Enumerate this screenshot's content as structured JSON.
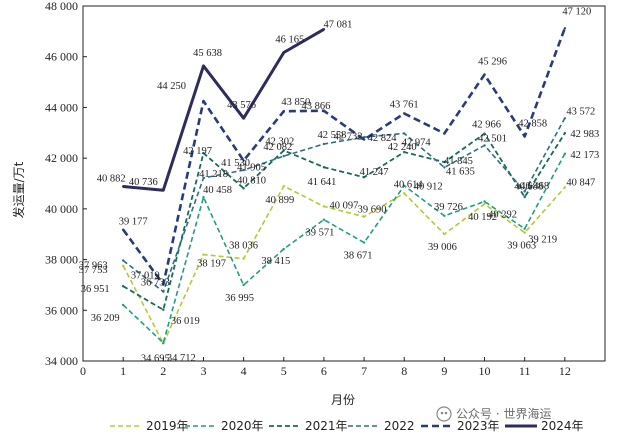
{
  "chart_data": {
    "type": "line",
    "xlabel": "月份",
    "ylabel": "发运量/万t",
    "xlim": [
      0,
      13
    ],
    "ylim": [
      34000,
      48000
    ],
    "x_ticks": [
      "0",
      "1",
      "2",
      "3",
      "4",
      "5",
      "6",
      "7",
      "8",
      "9",
      "10",
      "11",
      "12"
    ],
    "y_ticks": [
      "34 000",
      "36 000",
      "38 000",
      "40 000",
      "42 000",
      "44 000",
      "46 000",
      "48 000"
    ],
    "grid": false,
    "legend_position": "bottom",
    "series": [
      {
        "name": "2019年",
        "color": "#b5c936",
        "style": "dash",
        "width": 1.6,
        "x": [
          1,
          2,
          3,
          4,
          5,
          6,
          7,
          8,
          9,
          10,
          11,
          12
        ],
        "values": [
          37753,
          34695,
          38197,
          38036,
          40899,
          40097,
          39690,
          40614,
          39006,
          40192,
          39063,
          40847
        ],
        "labels": [
          "37 753",
          "34 695",
          "38 197",
          "38 036",
          "40 899",
          "40 097",
          "39 690",
          "40 614",
          "39 006",
          "40 192",
          "39 063",
          "40 847"
        ]
      },
      {
        "name": "2020年",
        "color": "#1f9e83",
        "style": "dash",
        "width": 1.6,
        "x": [
          1,
          2,
          3,
          4,
          5,
          6,
          7,
          8,
          9,
          10,
          11,
          12
        ],
        "values": [
          36209,
          34712,
          40458,
          36995,
          38415,
          39571,
          38671,
          40912,
          39726,
          40292,
          39219,
          42173
        ],
        "labels": [
          "36 209",
          "34 712",
          "40 458",
          "36 995",
          "38 415",
          "39 571",
          "38 671",
          "40 912",
          "39 726",
          "40 292",
          "39 219",
          "42 173"
        ]
      },
      {
        "name": "2021年",
        "color": "#166b5c",
        "style": "dash",
        "width": 1.8,
        "x": [
          1,
          2,
          3,
          4,
          5,
          6,
          7,
          8,
          9,
          10,
          11,
          12
        ],
        "values": [
          36951,
          36019,
          42197,
          40810,
          42302,
          41641,
          41247,
          42240,
          41845,
          42966,
          40468,
          42983
        ],
        "labels": [
          "36 951",
          "36 019",
          "42 197",
          "40 810",
          "42 302",
          "41 641",
          "41 247",
          "42 240",
          "41 845",
          "42 966",
          "40 468",
          "42 983"
        ]
      },
      {
        "name": "2022",
        "color": "#2f6f83",
        "style": "dash",
        "width": 1.6,
        "x": [
          1,
          2,
          3,
          4,
          5,
          6,
          7,
          8,
          9,
          10,
          11,
          12
        ],
        "values": [
          37963,
          36733,
          41218,
          41530,
          42082,
          42558,
          42824,
          42974,
          41635,
          42501,
          40688,
          43572
        ],
        "labels": [
          "37 963",
          "36 733",
          "41 218",
          "41 530",
          "42 082",
          "42 558",
          "42 824",
          "42 974",
          "41 635",
          "42 501",
          "40 688",
          "43 572"
        ]
      },
      {
        "name": "2023年",
        "color": "#283c7a",
        "style": "dash-bold",
        "width": 2.6,
        "x": [
          1,
          2,
          3,
          4,
          5,
          6,
          7,
          8,
          9,
          10,
          11,
          12
        ],
        "values": [
          39177,
          37019,
          44250,
          41905,
          43850,
          43866,
          42732,
          43761,
          42974,
          45296,
          42858,
          47120
        ],
        "labels": [
          "39 177",
          "37 019",
          "44 250",
          "41 905",
          "43 850",
          "43 866",
          "42 732",
          "43 761",
          "",
          "45 296",
          "42 858",
          "47 120"
        ]
      },
      {
        "name": "2024年",
        "color": "#2d2c5e",
        "style": "solid",
        "width": 3,
        "x": [
          1,
          2,
          3,
          4,
          5,
          6
        ],
        "values": [
          40882,
          40736,
          45638,
          43576,
          46165,
          47081
        ],
        "labels": [
          "40 882",
          "40 736",
          "45 638",
          "43 576",
          "46 165",
          "47 081"
        ]
      }
    ]
  },
  "watermark": {
    "text": "公众号 · 世界海运"
  }
}
